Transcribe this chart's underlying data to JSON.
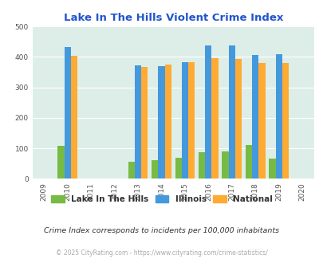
{
  "title": "Lake In The Hills Violent Crime Index",
  "years": [
    2009,
    2010,
    2011,
    2012,
    2013,
    2014,
    2015,
    2016,
    2017,
    2018,
    2019,
    2020
  ],
  "data_years": [
    2010,
    2013,
    2014,
    2015,
    2016,
    2017,
    2018,
    2019
  ],
  "lake_values": [
    108,
    55,
    62,
    68,
    87,
    90,
    112,
    67
  ],
  "illinois_values": [
    433,
    373,
    370,
    383,
    437,
    436,
    405,
    408
  ],
  "national_values": [
    404,
    366,
    375,
    383,
    396,
    394,
    379,
    379
  ],
  "lake_color": "#77bb44",
  "illinois_color": "#4499dd",
  "national_color": "#ffaa33",
  "bg_color": "#ddeee8",
  "title_color": "#2255cc",
  "ylabel_min": 0,
  "ylabel_max": 500,
  "ylabel_step": 100,
  "legend_labels": [
    "Lake In The Hills",
    "Illinois",
    "National"
  ],
  "footnote1": "Crime Index corresponds to incidents per 100,000 inhabitants",
  "footnote2": "© 2025 CityRating.com - https://www.cityrating.com/crime-statistics/",
  "bar_width": 0.28
}
